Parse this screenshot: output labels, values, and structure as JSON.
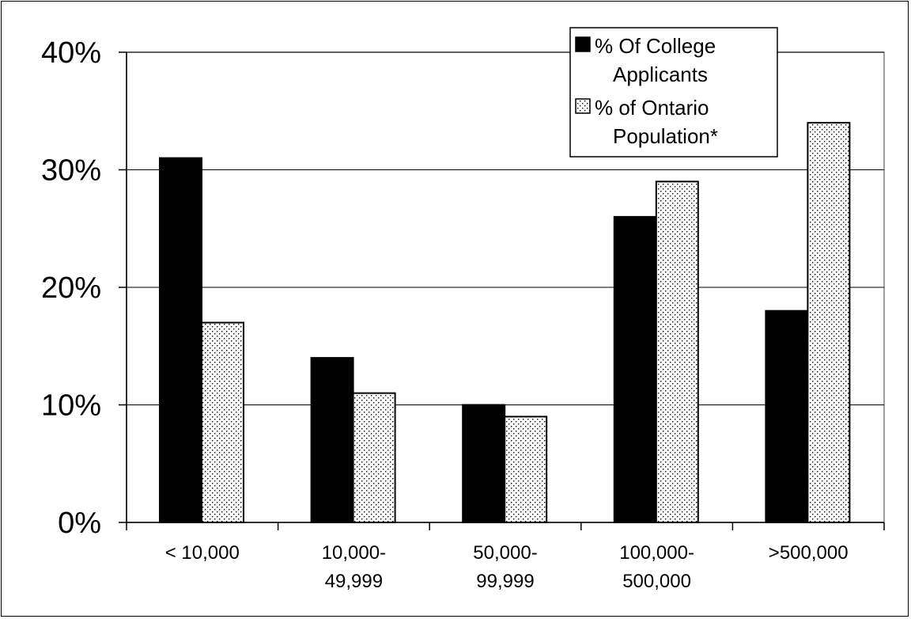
{
  "chart_data": {
    "type": "bar",
    "title": "",
    "xlabel": "",
    "ylabel": "",
    "categories": [
      [
        "< 10,000"
      ],
      [
        "10,000-",
        "49,999"
      ],
      [
        "50,000-",
        "99,999"
      ],
      [
        "100,000-",
        "500,000"
      ],
      [
        ">500,000"
      ]
    ],
    "series": [
      {
        "name": [
          "% Of College",
          "Applicants"
        ],
        "values": [
          31,
          14,
          10,
          26,
          18
        ],
        "fill": "solid",
        "color": "#000000"
      },
      {
        "name": [
          "% of Ontario",
          "Population*"
        ],
        "values": [
          17,
          11,
          9,
          29,
          34
        ],
        "fill": "dotted",
        "color": "#ffffff"
      }
    ],
    "ylim": [
      0,
      40
    ],
    "yticks": [
      "0%",
      "10%",
      "20%",
      "30%",
      "40%"
    ],
    "grid": true,
    "legend_position": "top-right"
  }
}
